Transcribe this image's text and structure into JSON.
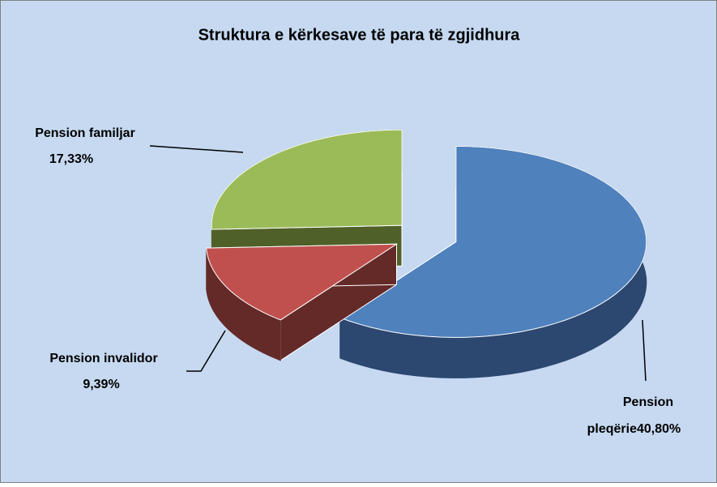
{
  "chart_data": {
    "type": "pie3d",
    "title": "Struktura e kërkesave të para të zgjidhura",
    "categories": [
      "Pension pleqërie",
      "Pension invalidor",
      "Pension familjar"
    ],
    "values": [
      40.8,
      9.39,
      17.33
    ],
    "value_labels": [
      "40,80%",
      "9,39%",
      "17,33%"
    ],
    "colors": [
      "#4f81bd",
      "#c0504d",
      "#9bbb59"
    ],
    "side_colors": [
      "#2c4770",
      "#632a28",
      "#4f6128"
    ]
  }
}
